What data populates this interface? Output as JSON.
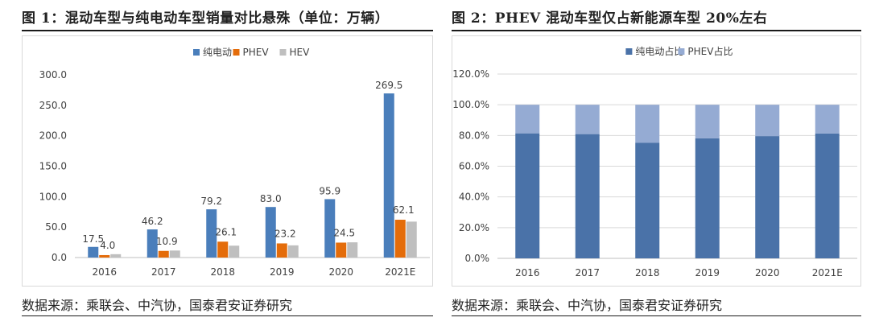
{
  "chart_data": [
    {
      "type": "bar",
      "title": "图 1：混动车型与纯电动车型销量对比悬殊（单位：万辆）",
      "source": "数据来源：乘联会、中汽协，国泰君安证券研究",
      "categories": [
        "2016",
        "2017",
        "2018",
        "2019",
        "2020",
        "2021E"
      ],
      "ylim": [
        0,
        300
      ],
      "yticks": [
        0,
        50,
        100,
        150,
        200,
        250,
        300
      ],
      "ytick_labels": [
        "0.0",
        "50.0",
        "100.0",
        "150.0",
        "200.0",
        "250.0",
        "300.0"
      ],
      "legend_position": "top",
      "series": [
        {
          "name": "纯电动",
          "color": "#4a7ebb",
          "values": [
            17.5,
            46.2,
            79.2,
            83.0,
            95.9,
            269.5
          ],
          "labels": [
            "17.5",
            "46.2",
            "79.2",
            "83.0",
            "95.9",
            "269.5"
          ]
        },
        {
          "name": "PHEV",
          "color": "#e46c0a",
          "values": [
            4.0,
            10.9,
            26.1,
            23.2,
            24.5,
            62.1
          ],
          "labels": [
            "4.0",
            "10.9",
            "26.1",
            "23.2",
            "24.5",
            "62.1"
          ]
        },
        {
          "name": "HEV",
          "color": "#bfbfbf",
          "values": [
            5.5,
            11.5,
            19.5,
            20.0,
            25.0,
            59.0
          ],
          "labels": [
            "",
            "",
            "",
            "",
            "",
            ""
          ]
        }
      ]
    },
    {
      "type": "bar",
      "stacked": true,
      "title": "图 2：PHEV 混动车型仅占新能源车型 20%左右",
      "source": "数据来源：乘联会、中汽协，国泰君安证券研究",
      "categories": [
        "2016",
        "2017",
        "2018",
        "2019",
        "2020",
        "2021E"
      ],
      "ylim": [
        0,
        120
      ],
      "yticks": [
        0,
        20,
        40,
        60,
        80,
        100,
        120
      ],
      "ytick_labels": [
        "0.0%",
        "20.0%",
        "40.0%",
        "60.0%",
        "80.0%",
        "100.0%",
        "120.0%"
      ],
      "gridlines": true,
      "legend_position": "top",
      "series": [
        {
          "name": "纯电动占比",
          "color": "#4a72a8",
          "values": [
            81.4,
            80.9,
            75.2,
            78.2,
            79.6,
            81.3
          ]
        },
        {
          "name": "PHEV占比",
          "color": "#95abd3",
          "values": [
            18.6,
            19.1,
            24.8,
            21.8,
            20.4,
            18.7
          ]
        }
      ]
    }
  ]
}
